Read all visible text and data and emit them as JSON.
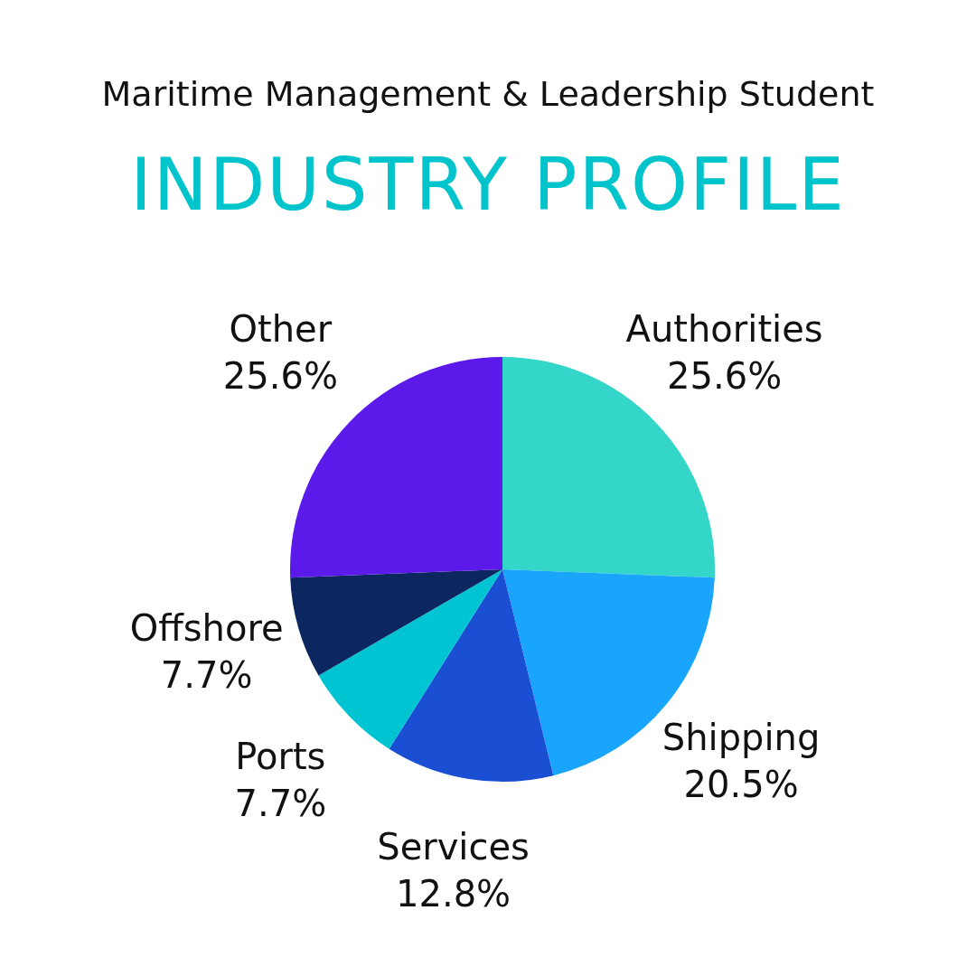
{
  "chart_data": {
    "type": "pie",
    "title": "Maritime Management & Leadership Student",
    "subtitle": "INDUSTRY PROFILE",
    "categories": [
      "Authorities",
      "Shipping",
      "Services",
      "Ports",
      "Offshore",
      "Other"
    ],
    "values": [
      25.6,
      20.5,
      12.8,
      7.7,
      7.7,
      25.6
    ],
    "colors": [
      "#33d6c8",
      "#18a5fb",
      "#1a4fd4",
      "#00c4d2",
      "#0c2660",
      "#5c1aea"
    ],
    "value_labels": [
      "25.6%",
      "20.5%",
      "12.8%",
      "7.7%",
      "7.7%",
      "25.6%"
    ],
    "legend": false
  }
}
